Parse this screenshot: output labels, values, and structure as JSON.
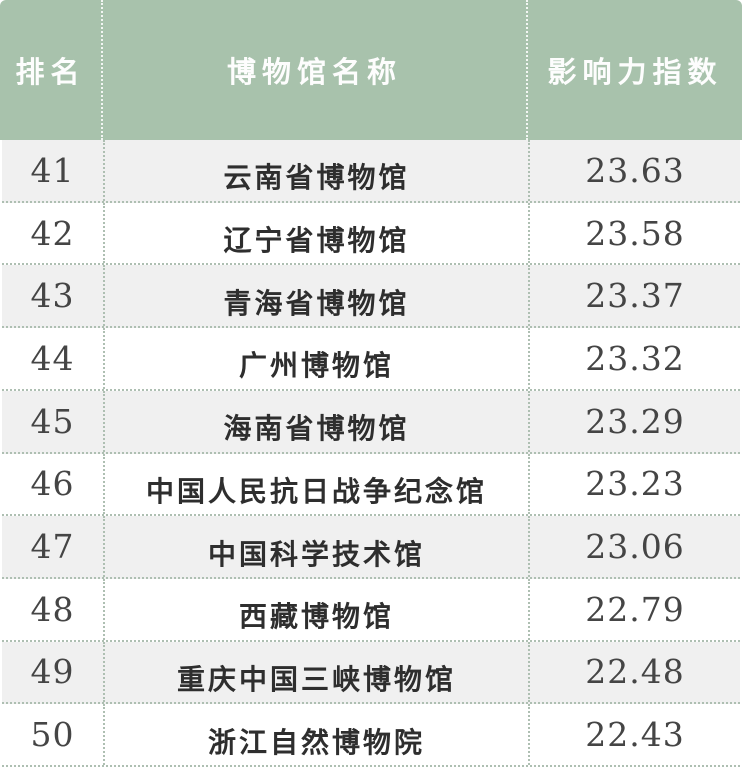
{
  "chart_data": {
    "type": "table",
    "columns": [
      "排名",
      "博物馆名称",
      "影响力指数"
    ],
    "rows": [
      [
        "41",
        "云南省博物馆",
        "23.63"
      ],
      [
        "42",
        "辽宁省博物馆",
        "23.58"
      ],
      [
        "43",
        "青海省博物馆",
        "23.37"
      ],
      [
        "44",
        "广州博物馆",
        "23.32"
      ],
      [
        "45",
        "海南省博物馆",
        "23.29"
      ],
      [
        "46",
        "中国人民抗日战争纪念馆",
        "23.23"
      ],
      [
        "47",
        "中国科学技术馆",
        "23.06"
      ],
      [
        "48",
        "西藏博物馆",
        "22.79"
      ],
      [
        "49",
        "重庆中国三峡博物馆",
        "22.48"
      ],
      [
        "50",
        "浙江自然博物院",
        "22.43"
      ]
    ]
  },
  "colors": {
    "header_bg": "#a8c2ac",
    "header_text": "#fdfdfd",
    "row_alt_bg": "#f0f0f0",
    "row_bg": "#ffffff",
    "divider": "#aebfb2",
    "body_text": "#454545",
    "name_text": "#2e2e2e"
  }
}
